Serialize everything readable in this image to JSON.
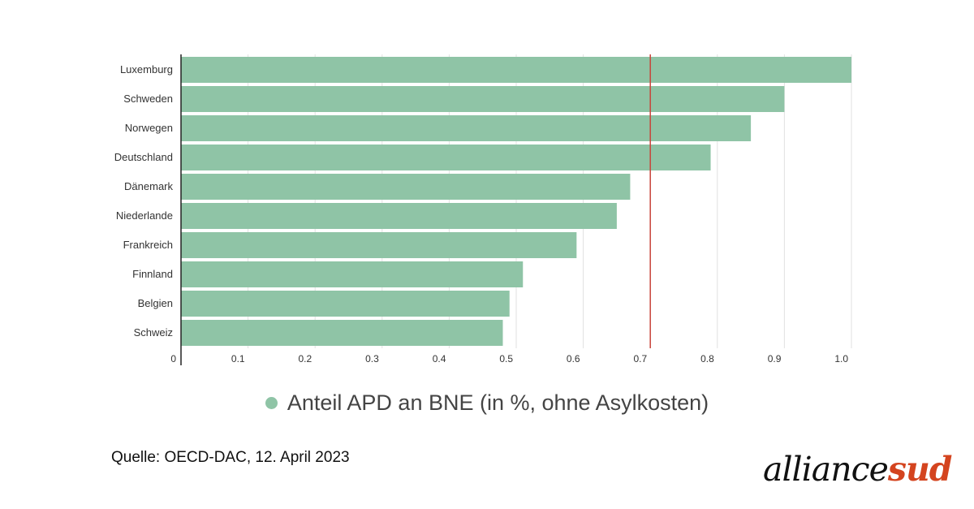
{
  "chart_data": {
    "type": "bar",
    "orientation": "horizontal",
    "categories": [
      "Luxemburg",
      "Schweden",
      "Norwegen",
      "Deutschland",
      "Dänemark",
      "Niederlande",
      "Frankreich",
      "Finnland",
      "Belgien",
      "Schweiz"
    ],
    "series": [
      {
        "name": "Anteil APD an BNE (in %, ohne Asylkosten)",
        "values": [
          1.0,
          0.9,
          0.85,
          0.79,
          0.67,
          0.65,
          0.59,
          0.51,
          0.49,
          0.48
        ]
      }
    ],
    "xlim": [
      0,
      1.0
    ],
    "xticks": [
      0,
      0.1,
      0.2,
      0.3,
      0.4,
      0.5,
      0.6,
      0.7,
      0.8,
      0.9,
      1.0
    ],
    "xtick_labels": [
      "0",
      "0.1",
      "0.2",
      "0.3",
      "0.4",
      "0.5",
      "0.6",
      "0.7",
      "0.8",
      "0.9",
      "1.0"
    ],
    "reference_line": 0.7,
    "grid": true,
    "legend_position": "bottom-center",
    "colors": {
      "bar": "#8fc4a6",
      "reference_line": "#c8443a",
      "grid": "#e2e2e2",
      "axis": "#222222"
    }
  },
  "legend": {
    "label": "Anteil APD an BNE (in %, ohne Asylkosten)"
  },
  "source": "Quelle: OECD-DAC, 12. April 2023",
  "logo": {
    "part1": "alliance",
    "part2": "sud",
    "color1": "#111111",
    "color2": "#d4441f"
  }
}
